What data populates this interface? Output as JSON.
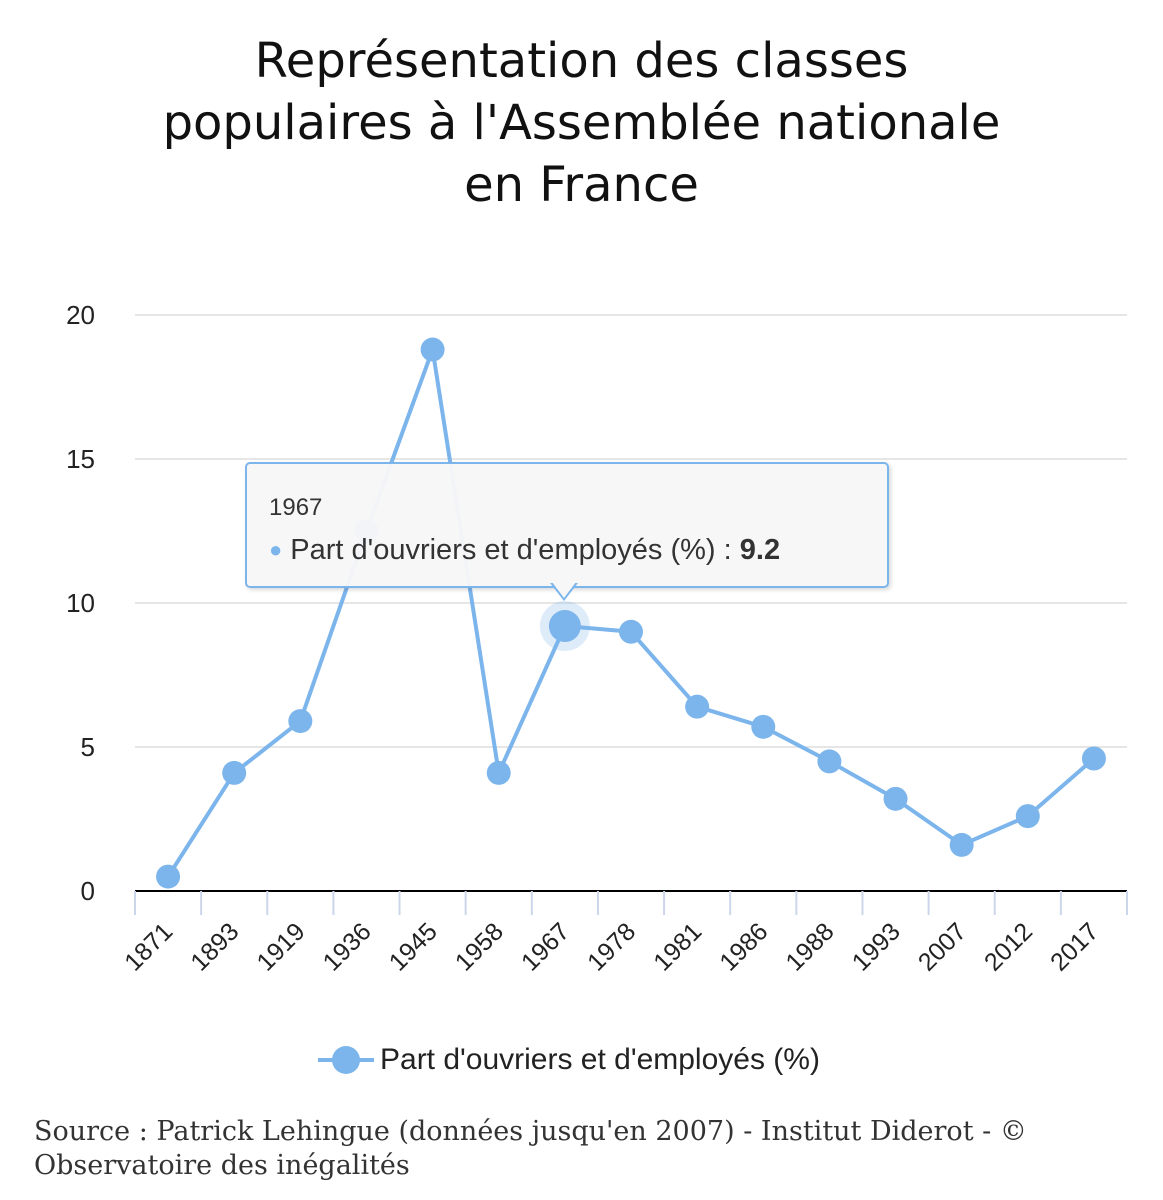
{
  "title_lines": [
    "Représentation des classes",
    "populaires à l'Assemblée nationale",
    "en France"
  ],
  "colors": {
    "series": "#7cb5ec",
    "grid": "#e6e6e6",
    "axis": "#000000"
  },
  "chart_data": {
    "type": "line",
    "title": "Représentation des classes populaires à l'Assemblée nationale en France",
    "categories": [
      "1871",
      "1893",
      "1919",
      "1936",
      "1945",
      "1958",
      "1967",
      "1978",
      "1981",
      "1986",
      "1988",
      "1993",
      "2007",
      "2012",
      "2017"
    ],
    "series": [
      {
        "name": "Part d'ouvriers et d'employés (%)",
        "values": [
          0.5,
          4.1,
          5.9,
          12.5,
          18.8,
          4.1,
          9.2,
          9.0,
          6.4,
          5.7,
          4.5,
          3.2,
          1.6,
          2.6,
          4.6
        ]
      }
    ],
    "yticks": [
      0,
      5,
      10,
      15,
      20
    ],
    "ylim": [
      0,
      20
    ],
    "xlabel": "",
    "ylabel": "",
    "grid": true,
    "legend": "bottom-center",
    "highlighted_index": 6
  },
  "legend_label": "Part d'ouvriers et d'employés (%)",
  "tooltip": {
    "header": "1967",
    "bullet": "●",
    "series_label": "Part d'ouvriers et d'employés (%) : ",
    "value": "9.2"
  },
  "source": "Source : Patrick Lehingue (données jusqu'en 2007) - Institut Diderot - © Observatoire des inégalités"
}
